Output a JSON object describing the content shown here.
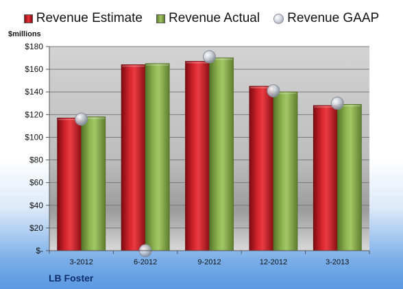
{
  "chart_data": {
    "type": "bar",
    "title": "",
    "ylabel": "$millions",
    "xlabel": "",
    "ylim": [
      0,
      180
    ],
    "yticks": [
      0,
      20,
      40,
      60,
      80,
      100,
      120,
      140,
      160,
      180
    ],
    "ytick_labels": [
      "$-",
      "$20",
      "$40",
      "$60",
      "$80",
      "$100",
      "$120",
      "$140",
      "$160",
      "$180"
    ],
    "categories": [
      "3-2012",
      "6-2012",
      "9-2012",
      "12-2012",
      "3-2013"
    ],
    "series": [
      {
        "name": "Revenue Estimate",
        "kind": "bar",
        "color": "#d01c24",
        "values": [
          117,
          164,
          167,
          145,
          128
        ]
      },
      {
        "name": "Revenue Actual",
        "kind": "bar",
        "color": "#8cb14d",
        "values": [
          118,
          165,
          170,
          140,
          129
        ]
      },
      {
        "name": "Revenue GAAP",
        "kind": "marker",
        "color": "#c9ced8",
        "values": [
          116,
          0,
          171,
          141,
          130
        ]
      }
    ],
    "legend_position": "top",
    "grid": true,
    "footer_label": "LB Foster"
  }
}
